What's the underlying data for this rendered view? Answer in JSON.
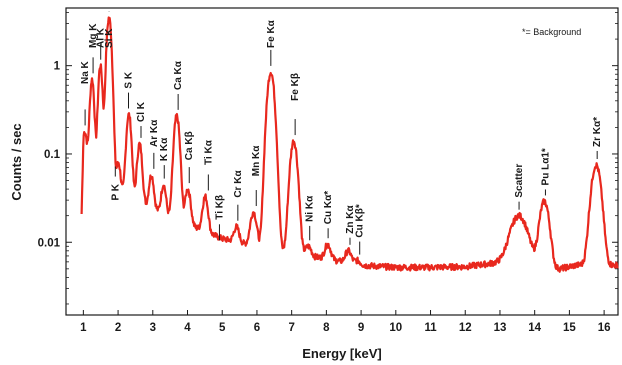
{
  "chart_data": {
    "type": "line",
    "title": "",
    "xlabel": "Energy [keV]",
    "ylabel": "Counts / sec",
    "xlim": [
      0.5,
      16.4
    ],
    "ylim": [
      0.0015,
      4.5
    ],
    "yscale": "log",
    "grid": false,
    "series_color": "#e8281e",
    "x_ticks": [
      "1",
      "2",
      "3",
      "4",
      "5",
      "6",
      "7",
      "8",
      "9",
      "10",
      "11",
      "12",
      "13",
      "14",
      "15",
      "16"
    ],
    "y_ticks": [
      "0.01",
      "0.1",
      "1"
    ],
    "annotation": "*= Background",
    "background": [
      {
        "x": 0.95,
        "y": 0.0015
      },
      {
        "x": 1.0,
        "y": 0.08
      },
      {
        "x": 1.2,
        "y": 0.09
      },
      {
        "x": 2.0,
        "y": 0.04
      },
      {
        "x": 3.0,
        "y": 0.024
      },
      {
        "x": 4.0,
        "y": 0.016
      },
      {
        "x": 5.0,
        "y": 0.011
      },
      {
        "x": 6.0,
        "y": 0.009
      },
      {
        "x": 7.0,
        "y": 0.0075
      },
      {
        "x": 8.0,
        "y": 0.0065
      },
      {
        "x": 9.0,
        "y": 0.0055
      },
      {
        "x": 10.0,
        "y": 0.0052
      },
      {
        "x": 11.0,
        "y": 0.0052
      },
      {
        "x": 12.0,
        "y": 0.0053
      },
      {
        "x": 12.8,
        "y": 0.0058
      },
      {
        "x": 13.5,
        "y": 0.0062
      },
      {
        "x": 14.5,
        "y": 0.0048
      },
      {
        "x": 15.2,
        "y": 0.0055
      },
      {
        "x": 16.4,
        "y": 0.0055
      }
    ],
    "peaks": [
      {
        "label": "Na K",
        "x": 1.04,
        "y": 0.18,
        "w": 0.05,
        "lx": 1.05,
        "ly": 0.62
      },
      {
        "label": "Mg K",
        "x": 1.25,
        "y": 0.7,
        "w": 0.05,
        "lx": 1.28,
        "ly": 1.8
      },
      {
        "label": "Al K",
        "x": 1.49,
        "y": 1.0,
        "w": 0.05,
        "lx": 1.5,
        "ly": 2.2
      },
      {
        "label": "Si K",
        "x": 1.74,
        "y": 3.5,
        "w": 0.06,
        "lx": 1.74,
        "ly": 4.5
      },
      {
        "label": "P K",
        "x": 2.01,
        "y": 0.08,
        "w": 0.05,
        "lx": 1.92,
        "ly": 0.05
      },
      {
        "label": "S K",
        "x": 2.31,
        "y": 0.28,
        "w": 0.06,
        "lx": 2.3,
        "ly": 0.55
      },
      {
        "label": "Cl K",
        "x": 2.62,
        "y": 0.13,
        "w": 0.06,
        "lx": 2.66,
        "ly": 0.23
      },
      {
        "label": "Ar Kα",
        "x": 2.96,
        "y": 0.058,
        "w": 0.06,
        "lx": 3.03,
        "ly": 0.12
      },
      {
        "label": "K Kα",
        "x": 3.31,
        "y": 0.045,
        "w": 0.06,
        "lx": 3.33,
        "ly": 0.083
      },
      {
        "label": "Ca Kα",
        "x": 3.69,
        "y": 0.27,
        "w": 0.07,
        "lx": 3.73,
        "ly": 0.53
      },
      {
        "label": "Ca Kβ",
        "x": 4.01,
        "y": 0.04,
        "w": 0.07,
        "lx": 4.05,
        "ly": 0.085
      },
      {
        "label": "Ti Kα",
        "x": 4.51,
        "y": 0.033,
        "w": 0.07,
        "lx": 4.6,
        "ly": 0.075
      },
      {
        "label": "Ti Kβ",
        "x": 4.93,
        "y": 0.009,
        "w": 0.07,
        "lx": 4.92,
        "ly": 0.018
      },
      {
        "label": "Cr Kα",
        "x": 5.41,
        "y": 0.015,
        "w": 0.07,
        "lx": 5.45,
        "ly": 0.032
      },
      {
        "label": "Mn Kα",
        "x": 5.9,
        "y": 0.022,
        "w": 0.08,
        "lx": 5.98,
        "ly": 0.056
      },
      {
        "label": "Fe Kα",
        "x": 6.4,
        "y": 0.85,
        "w": 0.09,
        "lx": 6.4,
        "ly": 2.4
      },
      {
        "label": "Fe Kβ",
        "x": 7.06,
        "y": 0.14,
        "w": 0.09,
        "lx": 7.1,
        "ly": 0.4
      },
      {
        "label": "Ni Kα",
        "x": 7.48,
        "y": 0.009,
        "w": 0.08,
        "lx": 7.52,
        "ly": 0.017
      },
      {
        "label": "Cu Kα*",
        "x": 8.04,
        "y": 0.0095,
        "w": 0.08,
        "lx": 8.05,
        "ly": 0.016
      },
      {
        "label": "Zn Kα",
        "x": 8.63,
        "y": 0.008,
        "w": 0.08,
        "lx": 8.68,
        "ly": 0.0125
      },
      {
        "label": "Cu Kβ*",
        "x": 8.9,
        "y": 0.0062,
        "w": 0.08,
        "lx": 8.96,
        "ly": 0.0113
      },
      {
        "label": "Scatter",
        "x": 13.55,
        "y": 0.02,
        "w": 0.22,
        "lx": 13.55,
        "ly": 0.032
      },
      {
        "label": "Pu Lα1*",
        "x": 14.28,
        "y": 0.029,
        "w": 0.12,
        "lx": 14.31,
        "ly": 0.044
      },
      {
        "label": "Zr Kα*",
        "x": 15.77,
        "y": 0.075,
        "w": 0.12,
        "lx": 15.8,
        "ly": 0.12
      }
    ]
  }
}
